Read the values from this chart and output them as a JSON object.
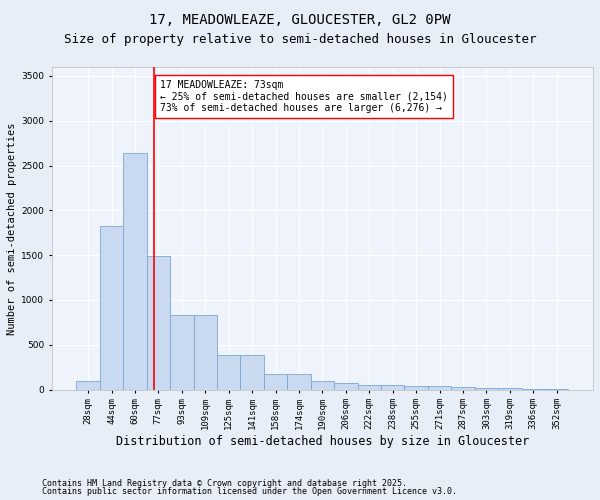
{
  "title1": "17, MEADOWLEAZE, GLOUCESTER, GL2 0PW",
  "title2": "Size of property relative to semi-detached houses in Gloucester",
  "xlabel": "Distribution of semi-detached houses by size in Gloucester",
  "ylabel": "Number of semi-detached properties",
  "categories": [
    "28sqm",
    "44sqm",
    "60sqm",
    "77sqm",
    "93sqm",
    "109sqm",
    "125sqm",
    "141sqm",
    "158sqm",
    "174sqm",
    "190sqm",
    "206sqm",
    "222sqm",
    "238sqm",
    "255sqm",
    "271sqm",
    "287sqm",
    "303sqm",
    "319sqm",
    "336sqm",
    "352sqm"
  ],
  "values": [
    95,
    1820,
    2640,
    1490,
    830,
    830,
    390,
    390,
    175,
    175,
    100,
    70,
    55,
    55,
    40,
    40,
    30,
    20,
    15,
    10,
    5
  ],
  "bar_color": "#c9d9f0",
  "bar_edge_color": "#7ba7d4",
  "bar_linewidth": 0.6,
  "vline_x": 2.8,
  "vline_color": "red",
  "vline_linewidth": 1.2,
  "annotation_title": "17 MEADOWLEAZE: 73sqm",
  "annotation_line2": "← 25% of semi-detached houses are smaller (2,154)",
  "annotation_line3": "73% of semi-detached houses are larger (6,276) →",
  "annotation_box_color": "white",
  "annotation_box_edge": "red",
  "ylim": [
    0,
    3600
  ],
  "yticks": [
    0,
    500,
    1000,
    1500,
    2000,
    2500,
    3000,
    3500
  ],
  "footnote1": "Contains HM Land Registry data © Crown copyright and database right 2025.",
  "footnote2": "Contains public sector information licensed under the Open Government Licence v3.0.",
  "bg_color": "#e8eef8",
  "plot_bg_color": "#eef3fc",
  "grid_color": "white",
  "title_fontsize": 10,
  "subtitle_fontsize": 9,
  "annotation_fontsize": 7,
  "tick_fontsize": 6.5,
  "ylabel_fontsize": 7.5,
  "xlabel_fontsize": 8.5,
  "footnote_fontsize": 6
}
